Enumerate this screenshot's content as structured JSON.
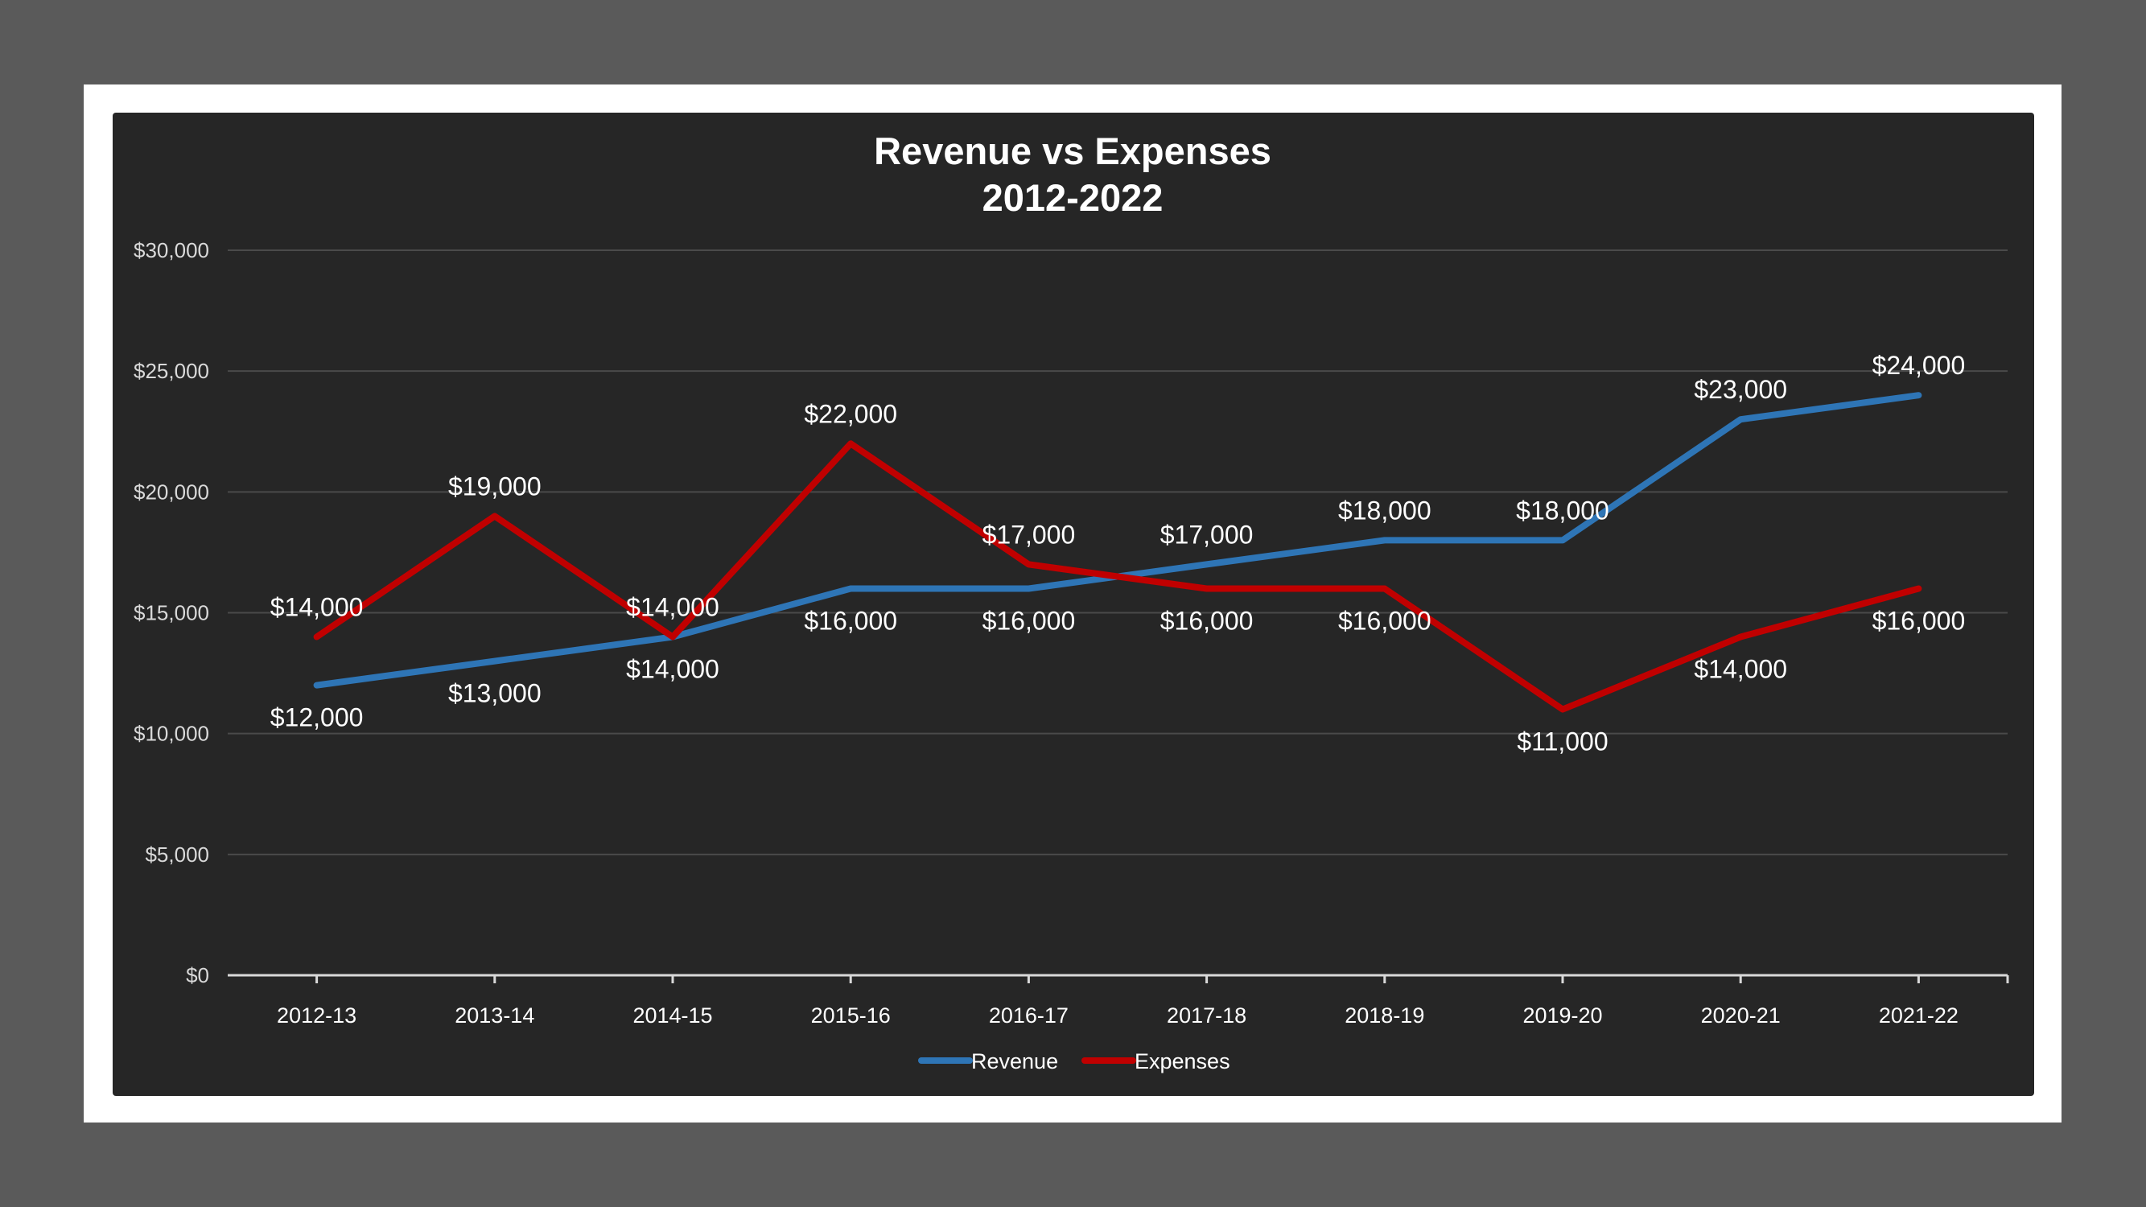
{
  "chart_data": {
    "type": "line",
    "title": [
      "Revenue vs Expenses",
      "2012-2022"
    ],
    "xlabel": "",
    "ylabel": "",
    "categories": [
      "2012-13",
      "2013-14",
      "2014-15",
      "2015-16",
      "2016-17",
      "2017-18",
      "2018-19",
      "2019-20",
      "2020-21",
      "2021-22"
    ],
    "ylim": [
      0,
      30000
    ],
    "yticks": [
      0,
      5000,
      10000,
      15000,
      20000,
      25000,
      30000
    ],
    "ytick_labels": [
      "$0",
      "$5,000",
      "$10,000",
      "$15,000",
      "$20,000",
      "$25,000",
      "$30,000"
    ],
    "grid": true,
    "legend_position": "bottom",
    "series": [
      {
        "name": "Revenue",
        "color": "#2e75b6",
        "values": [
          12000,
          13000,
          14000,
          16000,
          16000,
          17000,
          18000,
          18000,
          23000,
          24000
        ],
        "labels": [
          "$12,000",
          "$13,000",
          "$14,000",
          "$16,000",
          "$16,000",
          "$17,000",
          "$18,000",
          "$18,000",
          "$23,000",
          "$24,000"
        ],
        "label_side": [
          "below",
          "below",
          "below",
          "below",
          "below",
          "above",
          "above",
          "above",
          "above",
          "above"
        ]
      },
      {
        "name": "Expenses",
        "color": "#c00000",
        "values": [
          14000,
          19000,
          14000,
          22000,
          17000,
          16000,
          16000,
          11000,
          14000,
          16000
        ],
        "labels": [
          "$14,000",
          "$19,000",
          "$14,000",
          "$22,000",
          "$17,000",
          "$16,000",
          "$16,000",
          "$11,000",
          "$14,000",
          "$16,000"
        ],
        "label_side": [
          "above",
          "above",
          "above",
          "above",
          "above",
          "below",
          "below",
          "below",
          "below",
          "below"
        ]
      }
    ]
  }
}
